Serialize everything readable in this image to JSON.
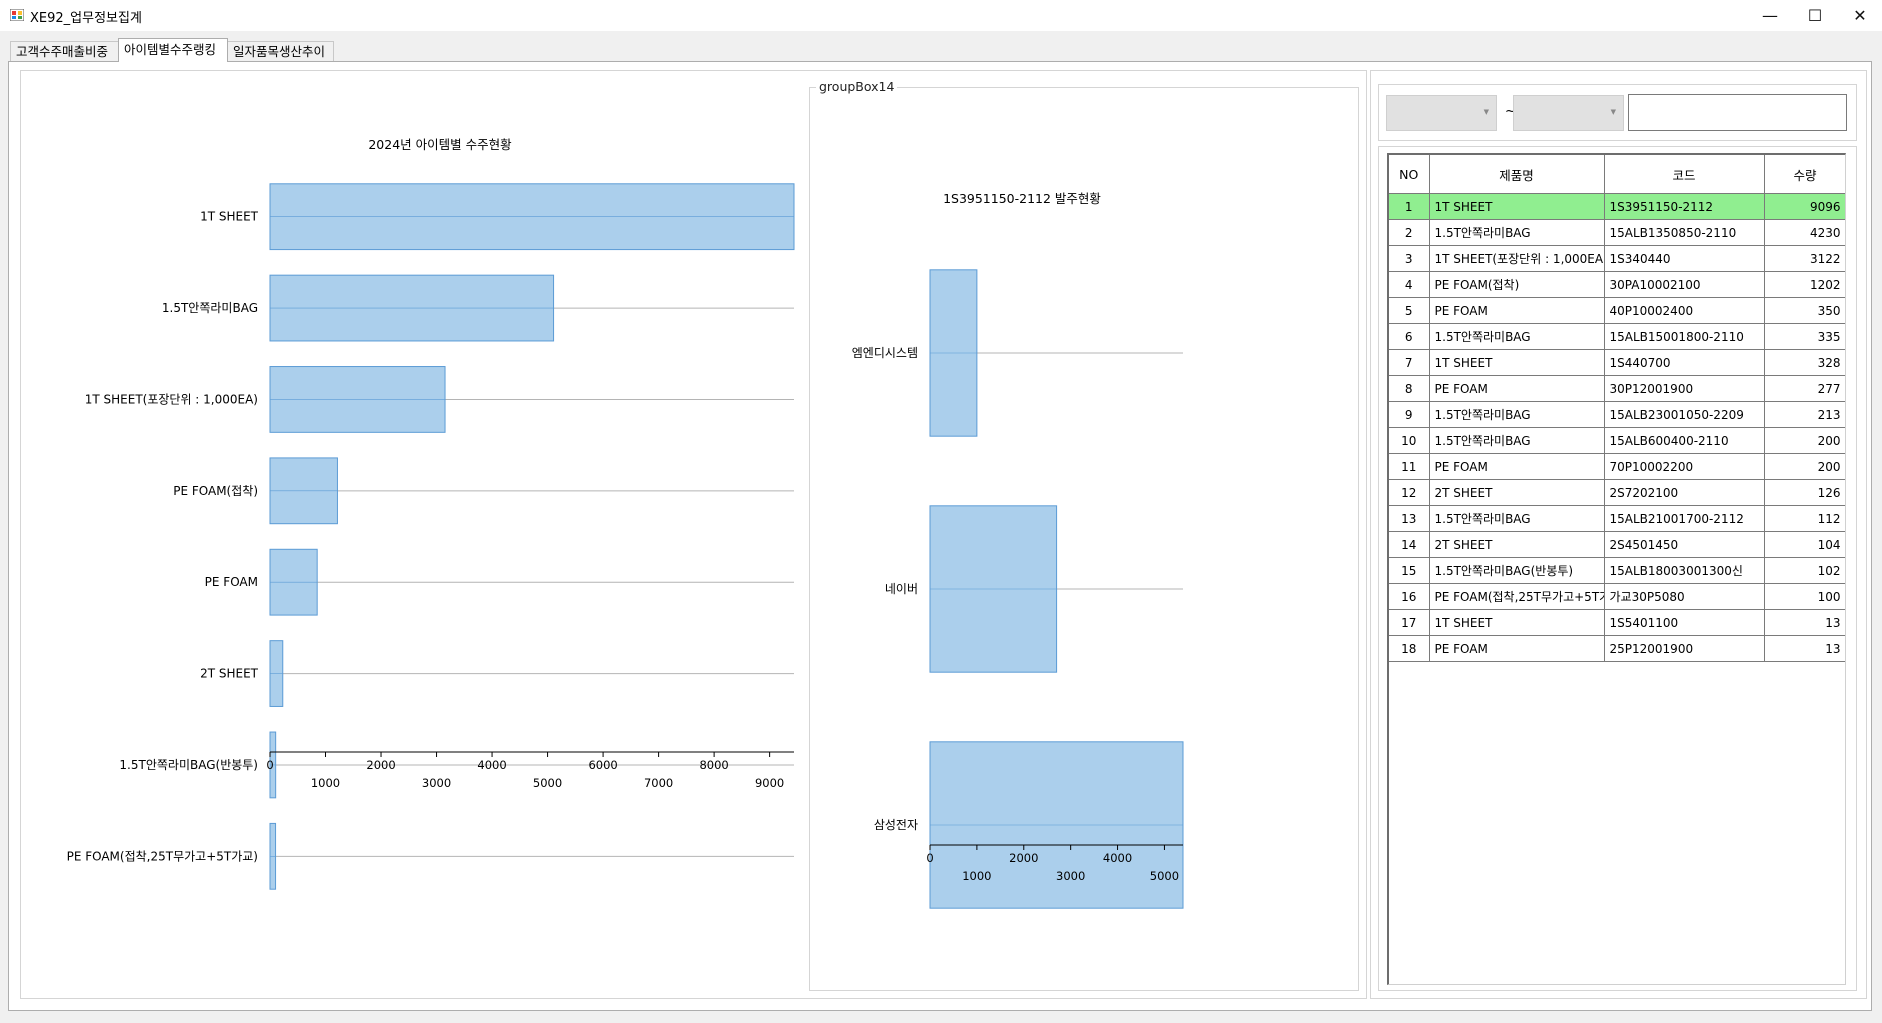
{
  "window": {
    "title": "XE92_업무정보집계",
    "minimize": "—",
    "maximize": "☐",
    "close": "✕"
  },
  "tabs": [
    {
      "label": "고객수주매출비중",
      "active": false
    },
    {
      "label": "아이템별수주랭킹",
      "active": true
    },
    {
      "label": "일자품목생산추이",
      "active": false
    }
  ],
  "groupbox": {
    "label": "groupBox14"
  },
  "filters": {
    "combo1": "",
    "combo2": "",
    "separator": "~",
    "search_value": ""
  },
  "grid": {
    "columns": [
      "NO",
      "제품명",
      "코드",
      "수량"
    ],
    "selected_row": 0,
    "selected_color": "#90ee90",
    "rows": [
      [
        "1",
        "1T SHEET",
        "1S3951150-2112",
        "9096"
      ],
      [
        "2",
        "1.5T안쪽라미BAG",
        "15ALB1350850-2110",
        "4230"
      ],
      [
        "3",
        "1T SHEET(포장단위 : 1,000EA)",
        "1S340440",
        "3122"
      ],
      [
        "4",
        "PE FOAM(접착)",
        "30PA10002100",
        "1202"
      ],
      [
        "5",
        "PE FOAM",
        "40P10002400",
        "350"
      ],
      [
        "6",
        "1.5T안쪽라미BAG",
        "15ALB15001800-2110",
        "335"
      ],
      [
        "7",
        "1T SHEET",
        "1S440700",
        "328"
      ],
      [
        "8",
        "PE FOAM",
        "30P12001900",
        "277"
      ],
      [
        "9",
        "1.5T안쪽라미BAG",
        "15ALB23001050-2209",
        "213"
      ],
      [
        "10",
        "1.5T안쪽라미BAG",
        "15ALB600400-2110",
        "200"
      ],
      [
        "11",
        "PE FOAM",
        "70P10002200",
        "200"
      ],
      [
        "12",
        "2T SHEET",
        "2S7202100",
        "126"
      ],
      [
        "13",
        "1.5T안쪽라미BAG",
        "15ALB21001700-2112",
        "112"
      ],
      [
        "14",
        "2T SHEET",
        "2S4501450",
        "104"
      ],
      [
        "15",
        "1.5T안쪽라미BAG(반봉투)",
        "15ALB18003001300신",
        "102"
      ],
      [
        "16",
        "PE FOAM(접착,25T무가고+5T가",
        "가교30P5080",
        "100"
      ],
      [
        "17",
        "1T SHEET",
        "1S5401100",
        "13"
      ],
      [
        "18",
        "PE FOAM",
        "25P12001900",
        "13"
      ]
    ]
  },
  "chart_data": [
    {
      "type": "bar",
      "orientation": "horizontal",
      "title": "2024년 아이템별 수주현황",
      "categories": [
        "1T SHEET",
        "1.5T안쪽라미BAG",
        "1T SHEET(포장단위 : 1,000EA)",
        "PE FOAM(접착)",
        "PE FOAM",
        "2T SHEET",
        "1.5T안쪽라미BAG(반봉투)",
        "PE FOAM(접착,25T무가고+5T가교)"
      ],
      "values": [
        9439,
        5108,
        3153,
        1215,
        850,
        230,
        102,
        100
      ],
      "xlim": [
        0,
        9439
      ],
      "ticks_upper": [
        "0",
        "2000",
        "4000",
        "6000",
        "8000"
      ],
      "ticks_lower": [
        "1000",
        "3000",
        "5000",
        "7000",
        "9000"
      ],
      "grid": true,
      "color": "#abcfec"
    },
    {
      "type": "bar",
      "orientation": "horizontal",
      "title": "1S3951150-2112   발주현황",
      "categories": [
        "엠엔디시스템",
        "네이버",
        "삼성전자"
      ],
      "values": [
        1000,
        2700,
        5396
      ],
      "xlim": [
        0,
        5396
      ],
      "ticks_upper": [
        "0",
        "2000",
        "4000"
      ],
      "ticks_lower": [
        "1000",
        "3000",
        "5000"
      ],
      "grid": true,
      "color": "#abcfec"
    }
  ]
}
